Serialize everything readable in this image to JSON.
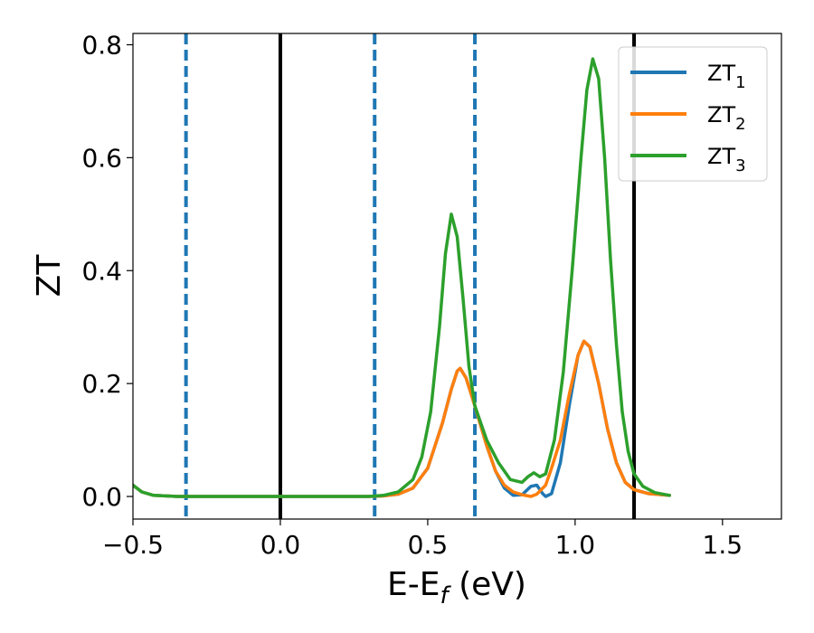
{
  "chart_data": {
    "type": "line",
    "xlabel": "E-E",
    "xlabel_sub": "f",
    "xlabel_unit": " (eV)",
    "ylabel": "ZT",
    "xlim": [
      -0.5,
      1.7
    ],
    "ylim": [
      -0.04,
      0.82
    ],
    "grid": false,
    "legend_position": "top-right",
    "xticks": [
      -0.5,
      0.0,
      0.5,
      1.0,
      1.5
    ],
    "xtick_labels": [
      "−0.5",
      "0.0",
      "0.5",
      "1.0",
      "1.5"
    ],
    "yticks": [
      0.0,
      0.2,
      0.4,
      0.6,
      0.8
    ],
    "ytick_labels": [
      "0.0",
      "0.2",
      "0.4",
      "0.6",
      "0.8"
    ],
    "vlines_solid": [
      0.0,
      1.2
    ],
    "vlines_dashed": [
      -0.32,
      0.32,
      0.66
    ],
    "vline_solid_color": "#000000",
    "vline_dashed_color": "#1f77b4",
    "series": [
      {
        "name": "ZT",
        "name_sub": "1",
        "color": "#1f77b4",
        "points": [
          [
            -0.5,
            0.02
          ],
          [
            -0.47,
            0.008
          ],
          [
            -0.43,
            0.002
          ],
          [
            -0.35,
            0.0
          ],
          [
            0.0,
            0.0
          ],
          [
            0.3,
            0.0
          ],
          [
            0.35,
            0.001
          ],
          [
            0.4,
            0.004
          ],
          [
            0.45,
            0.015
          ],
          [
            0.5,
            0.05
          ],
          [
            0.55,
            0.13
          ],
          [
            0.58,
            0.19
          ],
          [
            0.6,
            0.222
          ],
          [
            0.61,
            0.227
          ],
          [
            0.63,
            0.21
          ],
          [
            0.66,
            0.16
          ],
          [
            0.7,
            0.09
          ],
          [
            0.73,
            0.045
          ],
          [
            0.76,
            0.015
          ],
          [
            0.79,
            0.002
          ],
          [
            0.82,
            0.003
          ],
          [
            0.85,
            0.018
          ],
          [
            0.87,
            0.02
          ],
          [
            0.89,
            0.005
          ],
          [
            0.9,
            0.0
          ],
          [
            0.92,
            0.005
          ],
          [
            0.95,
            0.06
          ],
          [
            0.98,
            0.16
          ],
          [
            1.01,
            0.25
          ],
          [
            1.03,
            0.275
          ],
          [
            1.05,
            0.265
          ],
          [
            1.08,
            0.2
          ],
          [
            1.11,
            0.12
          ],
          [
            1.14,
            0.06
          ],
          [
            1.17,
            0.025
          ],
          [
            1.2,
            0.012
          ],
          [
            1.25,
            0.005
          ],
          [
            1.32,
            0.002
          ]
        ]
      },
      {
        "name": "ZT",
        "name_sub": "2",
        "color": "#ff7f0e",
        "points": [
          [
            -0.5,
            0.02
          ],
          [
            -0.47,
            0.008
          ],
          [
            -0.43,
            0.002
          ],
          [
            -0.35,
            0.0
          ],
          [
            0.0,
            0.0
          ],
          [
            0.3,
            0.0
          ],
          [
            0.35,
            0.001
          ],
          [
            0.4,
            0.004
          ],
          [
            0.45,
            0.015
          ],
          [
            0.5,
            0.05
          ],
          [
            0.55,
            0.13
          ],
          [
            0.58,
            0.19
          ],
          [
            0.6,
            0.222
          ],
          [
            0.61,
            0.227
          ],
          [
            0.63,
            0.21
          ],
          [
            0.66,
            0.16
          ],
          [
            0.7,
            0.09
          ],
          [
            0.73,
            0.045
          ],
          [
            0.76,
            0.02
          ],
          [
            0.79,
            0.008
          ],
          [
            0.82,
            0.003
          ],
          [
            0.85,
            0.0
          ],
          [
            0.87,
            0.004
          ],
          [
            0.9,
            0.02
          ],
          [
            0.92,
            0.05
          ],
          [
            0.95,
            0.1
          ],
          [
            0.98,
            0.18
          ],
          [
            1.01,
            0.25
          ],
          [
            1.03,
            0.275
          ],
          [
            1.05,
            0.265
          ],
          [
            1.08,
            0.2
          ],
          [
            1.11,
            0.12
          ],
          [
            1.14,
            0.06
          ],
          [
            1.17,
            0.025
          ],
          [
            1.2,
            0.012
          ],
          [
            1.25,
            0.005
          ],
          [
            1.32,
            0.002
          ]
        ]
      },
      {
        "name": "ZT",
        "name_sub": "3",
        "color": "#2ca02c",
        "points": [
          [
            -0.5,
            0.02
          ],
          [
            -0.47,
            0.008
          ],
          [
            -0.43,
            0.002
          ],
          [
            -0.35,
            0.0
          ],
          [
            0.0,
            0.0
          ],
          [
            0.3,
            0.0
          ],
          [
            0.35,
            0.002
          ],
          [
            0.4,
            0.008
          ],
          [
            0.45,
            0.03
          ],
          [
            0.48,
            0.07
          ],
          [
            0.51,
            0.15
          ],
          [
            0.54,
            0.3
          ],
          [
            0.56,
            0.43
          ],
          [
            0.58,
            0.5
          ],
          [
            0.6,
            0.46
          ],
          [
            0.62,
            0.35
          ],
          [
            0.64,
            0.23
          ],
          [
            0.66,
            0.16
          ],
          [
            0.7,
            0.1
          ],
          [
            0.74,
            0.06
          ],
          [
            0.78,
            0.03
          ],
          [
            0.82,
            0.025
          ],
          [
            0.84,
            0.035
          ],
          [
            0.86,
            0.042
          ],
          [
            0.88,
            0.035
          ],
          [
            0.9,
            0.04
          ],
          [
            0.93,
            0.1
          ],
          [
            0.96,
            0.22
          ],
          [
            0.99,
            0.4
          ],
          [
            1.02,
            0.6
          ],
          [
            1.04,
            0.72
          ],
          [
            1.06,
            0.775
          ],
          [
            1.08,
            0.74
          ],
          [
            1.1,
            0.6
          ],
          [
            1.12,
            0.42
          ],
          [
            1.14,
            0.27
          ],
          [
            1.16,
            0.15
          ],
          [
            1.18,
            0.08
          ],
          [
            1.2,
            0.04
          ],
          [
            1.23,
            0.018
          ],
          [
            1.27,
            0.007
          ],
          [
            1.32,
            0.002
          ]
        ]
      }
    ]
  }
}
